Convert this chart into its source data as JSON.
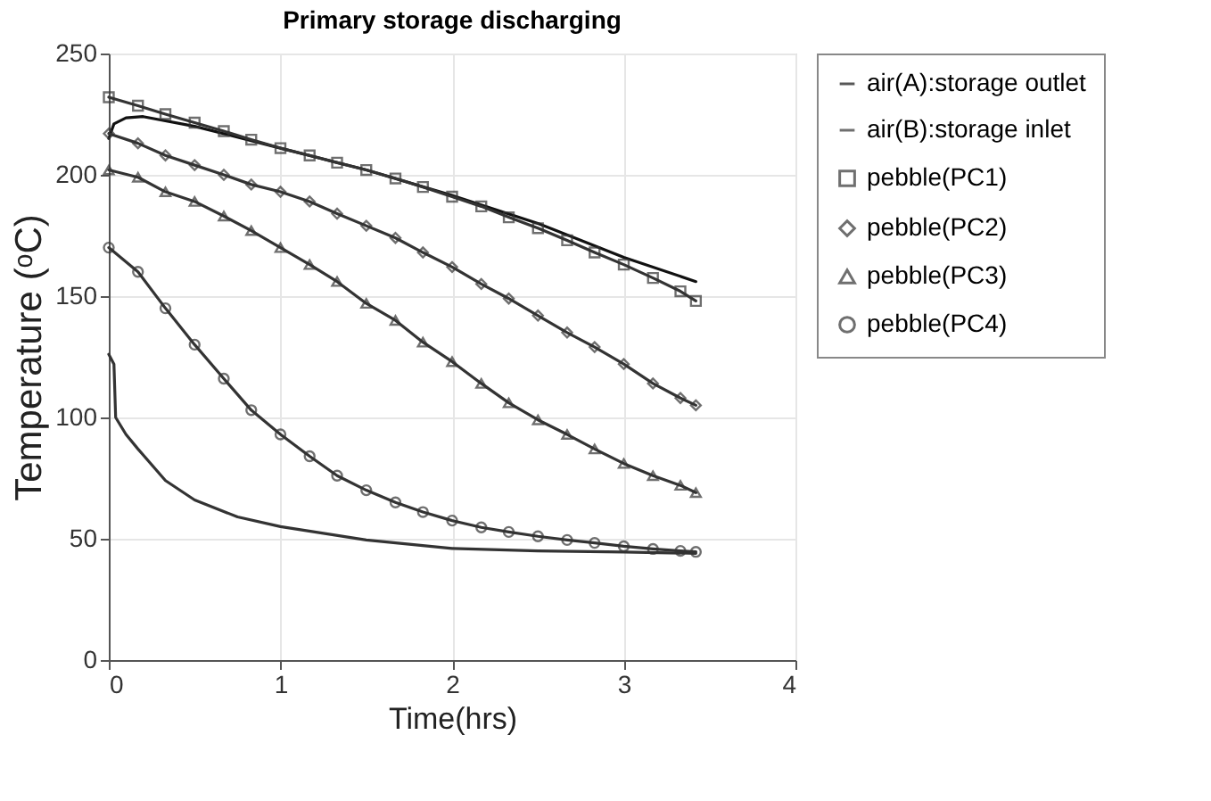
{
  "chart_data": {
    "type": "line",
    "title": "Primary storage discharging",
    "xlabel": "Time(hrs)",
    "ylabel": "Temperature (ᵒC)",
    "xlim": [
      0,
      4
    ],
    "ylim": [
      0,
      250
    ],
    "xticks": [
      0,
      1,
      2,
      3,
      4
    ],
    "yticks": [
      0,
      50,
      100,
      150,
      200,
      250
    ],
    "grid": true,
    "legend": "right",
    "line_style": "solid",
    "series": [
      {
        "name": "air(A):storage outlet",
        "color": "#111111",
        "marker": "none",
        "x": [
          0,
          0.03,
          0.1,
          0.2,
          0.5,
          1,
          1.5,
          2,
          2.5,
          3,
          3.42
        ],
        "values": [
          215,
          221,
          223.5,
          224,
          220,
          211,
          202,
          191.5,
          180,
          166,
          156
        ]
      },
      {
        "name": "air(B):storage inlet",
        "color": "#333333",
        "marker": "none",
        "x": [
          0,
          0.03,
          0.04,
          0.1,
          0.17,
          0.33,
          0.5,
          0.75,
          1,
          1.5,
          2,
          2.5,
          3,
          3.42
        ],
        "values": [
          126,
          122,
          100,
          93,
          87,
          74,
          66,
          59,
          55,
          49.5,
          46,
          45,
          44.5,
          44
        ]
      },
      {
        "name": "pebble(PC1)",
        "color": "#333333",
        "marker": "square",
        "x": [
          0,
          0.17,
          0.33,
          0.5,
          0.67,
          0.83,
          1,
          1.17,
          1.33,
          1.5,
          1.67,
          1.83,
          2,
          2.17,
          2.33,
          2.5,
          2.67,
          2.83,
          3,
          3.17,
          3.33,
          3.42
        ],
        "values": [
          232,
          228.5,
          225,
          221.5,
          218,
          214.5,
          211,
          208,
          205,
          202,
          198.5,
          195,
          191,
          187,
          182.5,
          178,
          173,
          168,
          163,
          157.5,
          152,
          148
        ]
      },
      {
        "name": "pebble(PC2)",
        "color": "#333333",
        "marker": "diamond",
        "x": [
          0,
          0.17,
          0.33,
          0.5,
          0.67,
          0.83,
          1,
          1.17,
          1.33,
          1.5,
          1.67,
          1.83,
          2,
          2.17,
          2.33,
          2.5,
          2.67,
          2.83,
          3,
          3.17,
          3.33,
          3.42
        ],
        "values": [
          217,
          213,
          208,
          204,
          200,
          196,
          193,
          189,
          184,
          179,
          174,
          168,
          162,
          155,
          149,
          142,
          135,
          129,
          122,
          114,
          108,
          105
        ]
      },
      {
        "name": "pebble(PC3)",
        "color": "#333333",
        "marker": "triangle",
        "x": [
          0,
          0.17,
          0.33,
          0.5,
          0.67,
          0.83,
          1,
          1.17,
          1.33,
          1.5,
          1.67,
          1.83,
          2,
          2.17,
          2.33,
          2.5,
          2.67,
          2.83,
          3,
          3.17,
          3.33,
          3.42
        ],
        "values": [
          202,
          199,
          193,
          189,
          183,
          177,
          170,
          163,
          156,
          147,
          140,
          131,
          123,
          114,
          106,
          99,
          93,
          87,
          81,
          76,
          72,
          69
        ]
      },
      {
        "name": "pebble(PC4)",
        "color": "#333333",
        "marker": "circle",
        "x": [
          0,
          0.17,
          0.33,
          0.5,
          0.67,
          0.83,
          1,
          1.17,
          1.33,
          1.5,
          1.67,
          1.83,
          2,
          2.17,
          2.33,
          2.5,
          2.67,
          2.83,
          3,
          3.17,
          3.33,
          3.42
        ],
        "values": [
          170,
          160,
          145,
          130,
          116,
          103,
          93,
          84,
          76,
          70,
          65,
          61,
          57.5,
          54.7,
          52.8,
          51,
          49.5,
          48.3,
          46.9,
          45.8,
          45,
          44.6
        ]
      }
    ]
  }
}
